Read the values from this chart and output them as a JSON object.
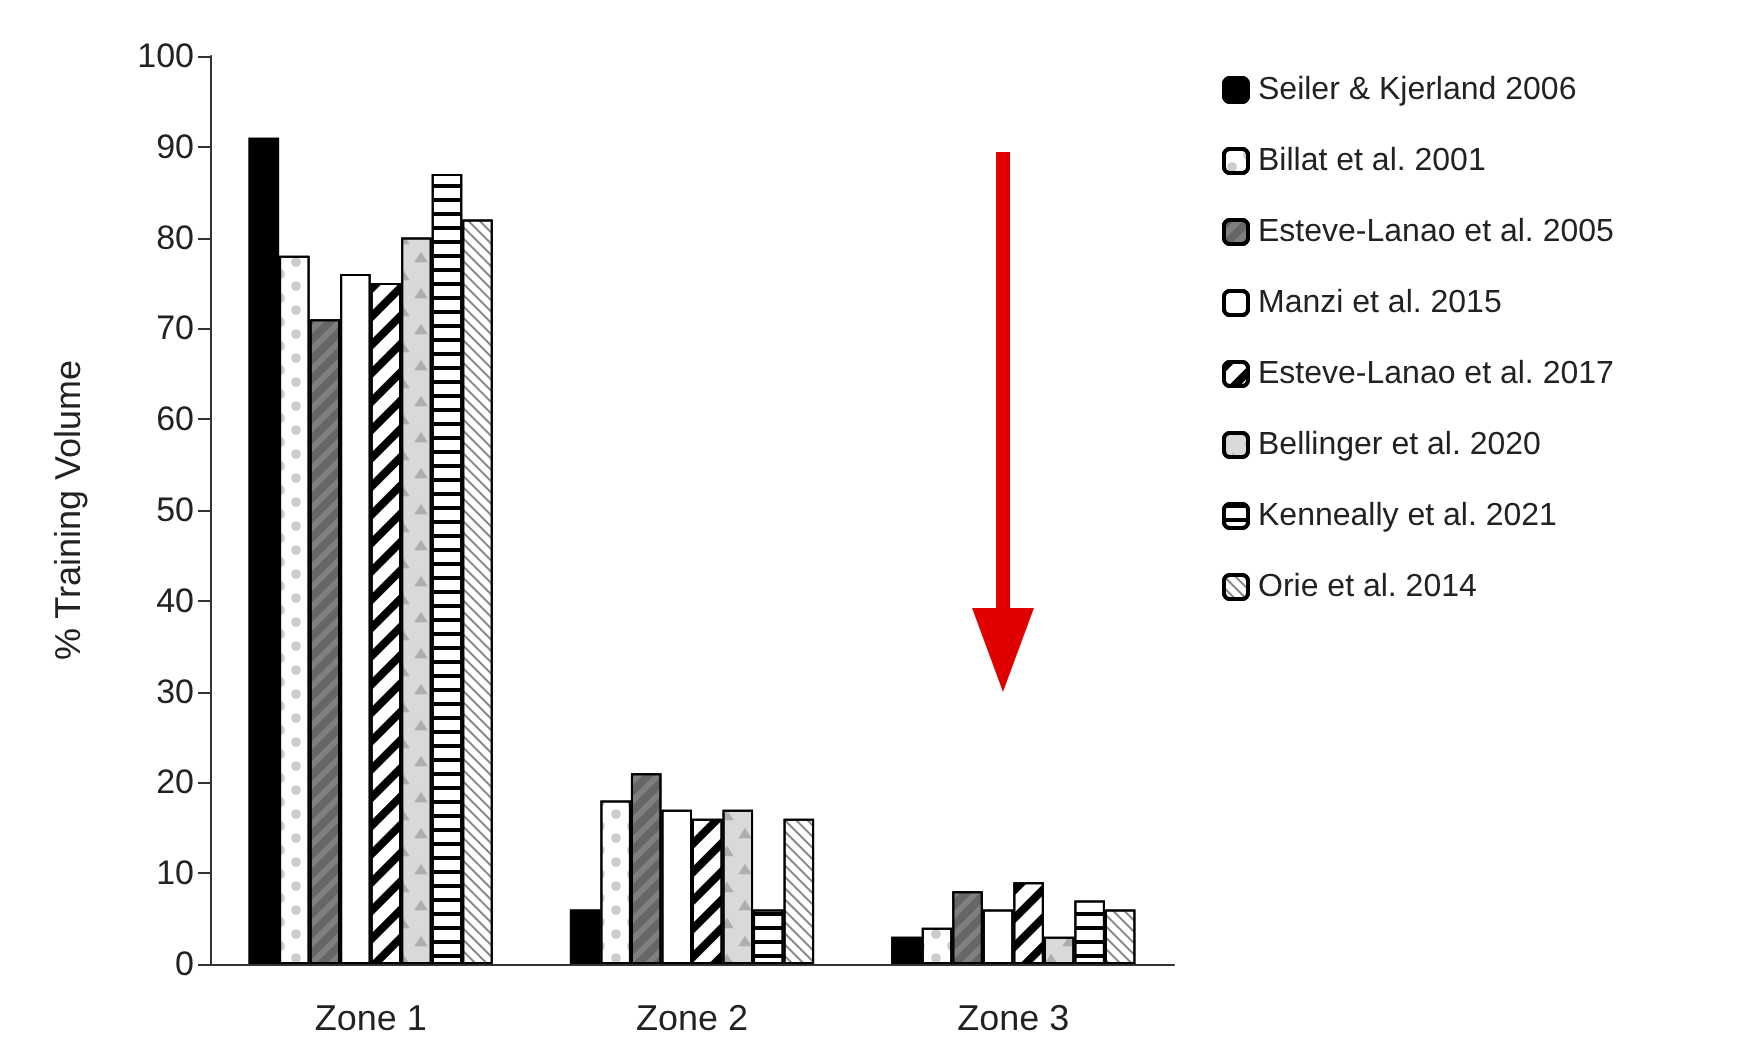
{
  "chart_data": {
    "type": "bar",
    "ylabel": "% Training Volume",
    "categories": [
      "Zone 1",
      "Zone 2",
      "Zone 3"
    ],
    "series": [
      {
        "name": "Seiler & Kjerland 2006",
        "color": "#000000",
        "values": [
          91,
          6,
          3
        ]
      },
      {
        "name": "Billat et al. 2001",
        "color": "#ffffff",
        "values": [
          78,
          18,
          4
        ]
      },
      {
        "name": "Esteve-Lanao et al. 2005",
        "color": "#7f7f7f",
        "values": [
          71,
          21,
          8
        ]
      },
      {
        "name": "Manzi et al. 2015",
        "color": "#ffffff",
        "values": [
          76,
          17,
          6
        ]
      },
      {
        "name": "Esteve-Lanao et al. 2017",
        "color": "#ffffff",
        "values": [
          75,
          16,
          9
        ]
      },
      {
        "name": "Bellinger et al. 2020",
        "color": "#d9d9d9",
        "values": [
          80,
          17,
          3
        ]
      },
      {
        "name": "Kenneally et al. 2021",
        "color": "#ffffff",
        "values": [
          87,
          6,
          7
        ]
      },
      {
        "name": "Orie et al. 2014",
        "color": "#ffffff",
        "values": [
          82,
          16,
          6
        ]
      }
    ],
    "ylim": [
      0,
      100
    ],
    "yticks": [
      0,
      10,
      20,
      30,
      40,
      50,
      60,
      70,
      80,
      90,
      100
    ],
    "grid": false,
    "legend": "right"
  }
}
